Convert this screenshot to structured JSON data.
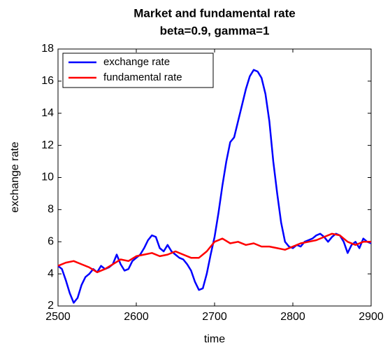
{
  "chart_data": {
    "type": "line",
    "title": "Market and fundamental rate",
    "subtitle": "beta=0.9, gamma=1",
    "x_label": "time",
    "y_label": "exchange rate",
    "xlim": [
      2500,
      2900
    ],
    "xticks": [
      2500,
      2600,
      2700,
      2800,
      2900
    ],
    "ylim": [
      2,
      18
    ],
    "yticks": [
      2,
      4,
      6,
      8,
      10,
      12,
      14,
      16,
      18
    ],
    "legend": "upper left",
    "series": [
      {
        "name": "exchange rate",
        "color": "#0000ff",
        "x": [
          2500,
          2505,
          2510,
          2515,
          2520,
          2525,
          2530,
          2535,
          2540,
          2545,
          2550,
          2555,
          2560,
          2565,
          2570,
          2575,
          2580,
          2585,
          2590,
          2595,
          2600,
          2605,
          2610,
          2615,
          2620,
          2625,
          2630,
          2635,
          2640,
          2645,
          2650,
          2655,
          2660,
          2665,
          2670,
          2675,
          2680,
          2685,
          2690,
          2695,
          2700,
          2705,
          2710,
          2715,
          2720,
          2725,
          2730,
          2735,
          2740,
          2745,
          2750,
          2755,
          2760,
          2765,
          2770,
          2775,
          2780,
          2785,
          2790,
          2795,
          2800,
          2805,
          2810,
          2815,
          2820,
          2825,
          2830,
          2835,
          2840,
          2845,
          2850,
          2855,
          2860,
          2865,
          2870,
          2875,
          2880,
          2885,
          2890,
          2895,
          2900
        ],
        "values": [
          4.5,
          4.3,
          3.6,
          2.8,
          2.2,
          2.5,
          3.3,
          3.8,
          4.0,
          4.3,
          4.1,
          4.5,
          4.3,
          4.4,
          4.6,
          5.2,
          4.6,
          4.2,
          4.3,
          4.8,
          5.0,
          5.2,
          5.6,
          6.1,
          6.4,
          6.3,
          5.6,
          5.4,
          5.8,
          5.4,
          5.2,
          5.0,
          4.9,
          4.6,
          4.2,
          3.5,
          3.0,
          3.1,
          4.0,
          5.2,
          6.3,
          7.8,
          9.5,
          11.0,
          12.2,
          12.5,
          13.5,
          14.5,
          15.5,
          16.3,
          16.7,
          16.6,
          16.2,
          15.2,
          13.5,
          11.0,
          9.0,
          7.2,
          6.0,
          5.7,
          5.6,
          5.8,
          5.7,
          6.0,
          6.1,
          6.2,
          6.4,
          6.5,
          6.3,
          6.0,
          6.3,
          6.5,
          6.4,
          6.0,
          5.3,
          5.8,
          6.0,
          5.6,
          6.2,
          6.0,
          5.9
        ]
      },
      {
        "name": "fundamental rate",
        "color": "#ff0000",
        "x": [
          2500,
          2510,
          2520,
          2530,
          2540,
          2550,
          2560,
          2570,
          2580,
          2590,
          2600,
          2610,
          2620,
          2630,
          2640,
          2650,
          2660,
          2670,
          2680,
          2690,
          2700,
          2710,
          2720,
          2730,
          2740,
          2750,
          2760,
          2770,
          2780,
          2790,
          2800,
          2810,
          2820,
          2830,
          2840,
          2850,
          2860,
          2870,
          2880,
          2890,
          2900
        ],
        "values": [
          4.5,
          4.7,
          4.8,
          4.6,
          4.4,
          4.1,
          4.3,
          4.6,
          4.9,
          4.8,
          5.1,
          5.2,
          5.3,
          5.1,
          5.2,
          5.4,
          5.2,
          5.0,
          5.0,
          5.4,
          6.0,
          6.2,
          5.9,
          6.0,
          5.8,
          5.9,
          5.7,
          5.7,
          5.6,
          5.5,
          5.7,
          5.9,
          6.0,
          6.1,
          6.3,
          6.5,
          6.4,
          6.0,
          5.8,
          6.0,
          6.0
        ]
      }
    ]
  }
}
